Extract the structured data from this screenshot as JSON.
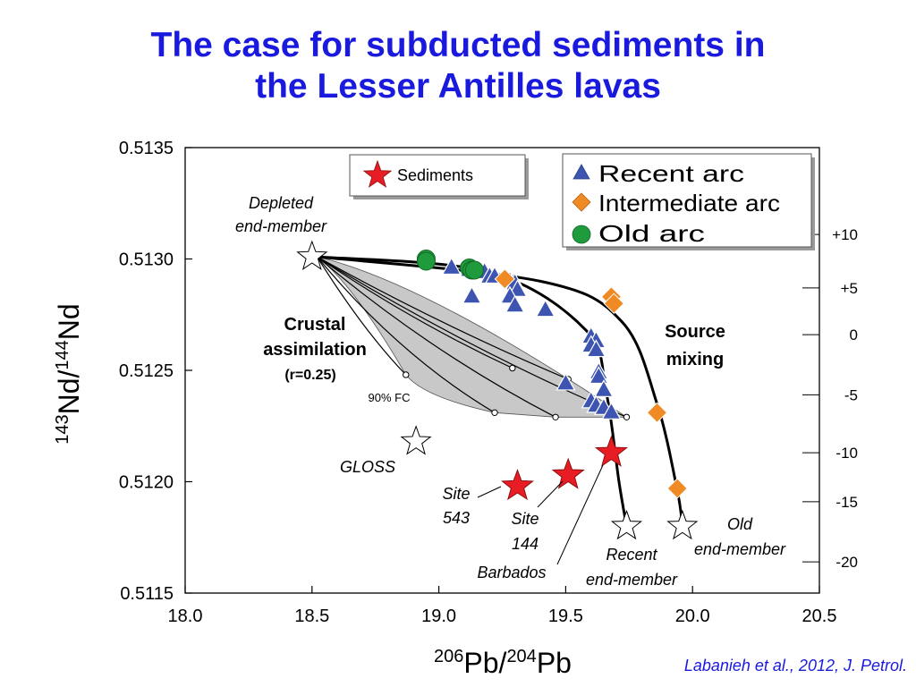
{
  "title": {
    "line1": "The case for subducted sediments in",
    "line2": "the Lesser Antilles lavas"
  },
  "citation": "Labanieh et al., 2012, J. Petrol.",
  "colors": {
    "title": "#1a1adf",
    "recent_arc": "#3d55b0",
    "intermediate_arc": "#f08a24",
    "old_arc": "#1f9a3c",
    "sediments": "#e81c24",
    "shading": "#c8c8c8"
  },
  "chart_data": {
    "type": "scatter",
    "xlabel": {
      "sup1": "206",
      "base1": "Pb/",
      "sup2": "204",
      "base2": "Pb"
    },
    "ylabel": {
      "sup1": "143",
      "base1": "Nd/",
      "sup2": "144",
      "base2": "Nd"
    },
    "xlim": [
      18.0,
      20.5
    ],
    "ylim": [
      0.5115,
      0.5135
    ],
    "x_ticks": [
      "18.0",
      "18.5",
      "19.0",
      "19.5",
      "20.0",
      "20.5"
    ],
    "y_ticks": [
      "0.5115",
      "0.5120",
      "0.5125",
      "0.5130",
      "0.5135"
    ],
    "right_axis_ticks": [
      {
        "label": "+10",
        "y": 0.51311
      },
      {
        "label": "+5",
        "y": 0.51287
      },
      {
        "label": "0",
        "y": 0.51266
      },
      {
        "label": "-5",
        "y": 0.51239
      },
      {
        "label": "-10",
        "y": 0.51213
      },
      {
        "label": "-15",
        "y": 0.51191
      },
      {
        "label": "-20",
        "y": 0.51164
      }
    ],
    "legend_series": {
      "recent": "Recent arc",
      "intermediate": "Intermediate arc",
      "old": "Old arc"
    },
    "legend_sediments": "Sediments",
    "series": [
      {
        "name": "Recent arc",
        "marker": "triangle",
        "points": [
          [
            19.05,
            0.51296
          ],
          [
            19.12,
            0.51295
          ],
          [
            19.18,
            0.51294
          ],
          [
            19.2,
            0.51292
          ],
          [
            19.22,
            0.51292
          ],
          [
            19.28,
            0.5129
          ],
          [
            19.3,
            0.51289
          ],
          [
            19.31,
            0.51286
          ],
          [
            19.13,
            0.51283
          ],
          [
            19.28,
            0.51283
          ],
          [
            19.3,
            0.51279
          ],
          [
            19.42,
            0.51277
          ],
          [
            19.6,
            0.51265
          ],
          [
            19.62,
            0.51263
          ],
          [
            19.6,
            0.51261
          ],
          [
            19.62,
            0.51259
          ],
          [
            19.63,
            0.51249
          ],
          [
            19.63,
            0.51247
          ],
          [
            19.5,
            0.51244
          ],
          [
            19.65,
            0.51241
          ],
          [
            19.6,
            0.51236
          ],
          [
            19.62,
            0.51234
          ],
          [
            19.65,
            0.51233
          ],
          [
            19.68,
            0.51231
          ]
        ]
      },
      {
        "name": "Intermediate arc",
        "marker": "diamond",
        "points": [
          [
            19.26,
            0.51291
          ],
          [
            19.68,
            0.51283
          ],
          [
            19.69,
            0.5128
          ],
          [
            19.86,
            0.51231
          ],
          [
            19.94,
            0.51197
          ]
        ]
      },
      {
        "name": "Old arc",
        "marker": "circle",
        "points": [
          [
            18.95,
            0.513
          ],
          [
            18.95,
            0.51299
          ],
          [
            19.12,
            0.51296
          ],
          [
            19.13,
            0.51295
          ],
          [
            19.14,
            0.51295
          ]
        ]
      }
    ],
    "sediments": [
      {
        "label_line1": "Site",
        "label_line2": "543",
        "x": 19.31,
        "y": 0.51198
      },
      {
        "label_line1": "Site",
        "label_line2": "144",
        "x": 19.51,
        "y": 0.51203
      },
      {
        "label_line1": "Barbados",
        "label_line2": "",
        "x": 19.68,
        "y": 0.51213
      }
    ],
    "end_members": [
      {
        "label_line1": "Depleted",
        "label_line2": "end-member",
        "x": 18.5,
        "y": 0.51301
      },
      {
        "label_line1": "GLOSS",
        "label_line2": "",
        "x": 18.91,
        "y": 0.51218
      },
      {
        "label_line1": "Recent",
        "label_line2": "end-member",
        "x": 19.74,
        "y": 0.5118
      },
      {
        "label_line1": "Old",
        "label_line2": "end-member",
        "x": 19.96,
        "y": 0.5118
      }
    ],
    "assimilation_ends": [
      [
        18.87,
        0.51248
      ],
      [
        19.22,
        0.51231
      ],
      [
        19.29,
        0.51251
      ],
      [
        19.46,
        0.51229
      ],
      [
        19.51,
        0.51246
      ],
      [
        19.74,
        0.51229
      ]
    ],
    "mixing_curves": {
      "recent": [
        [
          18.52,
          0.51301
        ],
        [
          19.2,
          0.51294
        ],
        [
          19.58,
          0.51268
        ],
        [
          19.66,
          0.5124
        ],
        [
          19.71,
          0.512
        ],
        [
          19.74,
          0.5118
        ]
      ],
      "old": [
        [
          18.52,
          0.51301
        ],
        [
          19.4,
          0.5129
        ],
        [
          19.72,
          0.51272
        ],
        [
          19.86,
          0.51235
        ],
        [
          19.94,
          0.51196
        ],
        [
          19.96,
          0.5118
        ]
      ]
    },
    "annotations": {
      "crustal_line1": "Crustal",
      "crustal_line2": "assimilation",
      "crustal_line3": "(r=0.25)",
      "fc": "90% FC",
      "source_line1": "Source",
      "source_line2": "mixing"
    }
  }
}
